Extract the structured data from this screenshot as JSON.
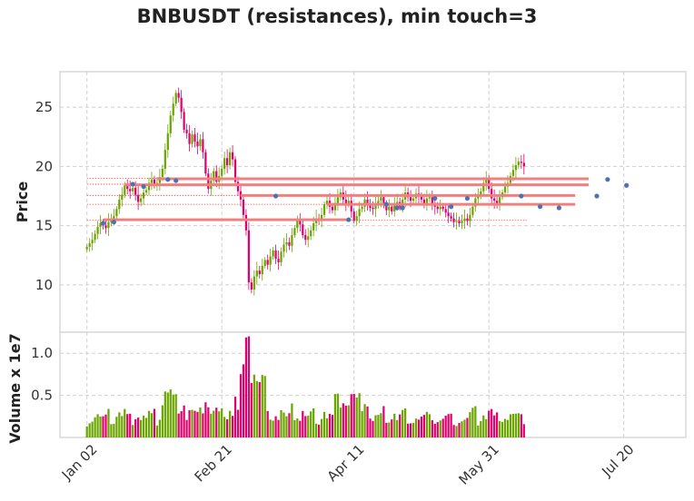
{
  "chart_data": {
    "type": "candlestick",
    "title": "BNBUSDT (resistances), min touch=3",
    "price_panel": {
      "ylabel": "Price",
      "ylim": [
        6,
        28
      ],
      "yticks": [
        10,
        15,
        20,
        25
      ]
    },
    "volume_panel": {
      "ylabel": "Volume x 1e7",
      "ylim": [
        0,
        1.25
      ],
      "yticks": [
        0.5,
        1.0
      ],
      "ytick_labels": [
        "0.5",
        "1.0"
      ]
    },
    "xticks": [
      {
        "i": 0,
        "label": "Jan 02"
      },
      {
        "i": 50,
        "label": "Feb 21"
      },
      {
        "i": 99,
        "label": "Apr 11"
      },
      {
        "i": 149,
        "label": "May 31"
      },
      {
        "i": 199,
        "label": "Jul 20"
      }
    ],
    "xlim": [
      -10,
      222
    ],
    "colors": {
      "up": "#6aa500",
      "down": "#e0006e",
      "resistance": "#f08080",
      "dotted": "#e04a4a",
      "touch": "#4c72b0"
    },
    "closes": [
      13.2,
      13.5,
      13.8,
      14.3,
      14.9,
      15.2,
      15.0,
      14.8,
      15.3,
      15.6,
      15.8,
      16.4,
      17.2,
      17.6,
      18.4,
      18.1,
      17.9,
      18.2,
      17.6,
      17.0,
      17.3,
      17.8,
      18.0,
      18.6,
      18.9,
      18.4,
      18.6,
      19.1,
      19.8,
      21.4,
      22.8,
      24.3,
      25.3,
      26.2,
      25.8,
      24.6,
      23.1,
      22.8,
      21.9,
      22.7,
      22.1,
      21.7,
      22.3,
      21.2,
      19.4,
      18.1,
      18.8,
      19.6,
      18.7,
      19.2,
      19.8,
      20.7,
      20.1,
      21.2,
      20.6,
      18.7,
      17.9,
      17.2,
      15.9,
      14.6,
      10.2,
      9.6,
      10.7,
      11.2,
      10.9,
      11.6,
      12.1,
      11.7,
      12.4,
      12.9,
      12.2,
      11.9,
      12.8,
      13.4,
      13.6,
      13.3,
      14.2,
      14.8,
      15.4,
      15.1,
      14.2,
      13.8,
      14.1,
      14.6,
      15.2,
      15.6,
      15.4,
      15.9,
      16.8,
      17.1,
      16.6,
      16.3,
      16.9,
      17.4,
      17.8,
      17.2,
      16.9,
      17.1,
      16.2,
      15.4,
      15.8,
      16.4,
      16.6,
      17.2,
      16.9,
      16.5,
      16.4,
      16.8,
      17.1,
      17.4,
      16.7,
      16.3,
      16.6,
      16.2,
      16.9,
      17.0,
      16.6,
      17.2,
      17.8,
      17.4,
      17.1,
      17.3,
      17.7,
      17.5,
      17.2,
      16.9,
      17.3,
      17.4,
      16.8,
      16.6,
      16.4,
      16.6,
      16.4,
      16.1,
      15.8,
      15.6,
      15.3,
      15.4,
      15.2,
      15.4,
      15.6,
      15.4,
      15.9,
      16.6,
      17.3,
      17.5,
      17.9,
      18.6,
      18.9,
      18.1,
      17.3,
      17.1,
      16.8,
      17.4,
      17.8,
      18.3,
      18.6,
      19.2,
      19.7,
      20.1,
      20.4,
      20.3,
      20.0
    ],
    "resistances": [
      {
        "level": 18.95,
        "from": 26,
        "to": 186
      },
      {
        "level": 18.45,
        "from": 14,
        "to": 186
      },
      {
        "level": 17.55,
        "from": 57,
        "to": 181
      },
      {
        "level": 16.8,
        "from": 89,
        "to": 181
      },
      {
        "level": 15.5,
        "from": 6,
        "to": 97
      }
    ],
    "dotted_lines": [
      19.0,
      18.5,
      17.55,
      16.8,
      15.45
    ],
    "touch_points": [
      {
        "i": 6,
        "p": 15.2
      },
      {
        "i": 10,
        "p": 15.3
      },
      {
        "i": 17,
        "p": 18.5
      },
      {
        "i": 21,
        "p": 18.3
      },
      {
        "i": 30,
        "p": 18.9
      },
      {
        "i": 33,
        "p": 18.8
      },
      {
        "i": 70,
        "p": 17.5
      },
      {
        "i": 97,
        "p": 15.5
      },
      {
        "i": 111,
        "p": 16.8
      },
      {
        "i": 115,
        "p": 16.5
      },
      {
        "i": 117,
        "p": 16.5
      },
      {
        "i": 129,
        "p": 17.3
      },
      {
        "i": 135,
        "p": 16.6
      },
      {
        "i": 141,
        "p": 17.3
      },
      {
        "i": 161,
        "p": 17.5
      },
      {
        "i": 168,
        "p": 16.6
      },
      {
        "i": 175,
        "p": 16.5
      },
      {
        "i": 189,
        "p": 17.5
      },
      {
        "i": 193,
        "p": 18.9
      },
      {
        "i": 200,
        "p": 18.4
      }
    ]
  }
}
